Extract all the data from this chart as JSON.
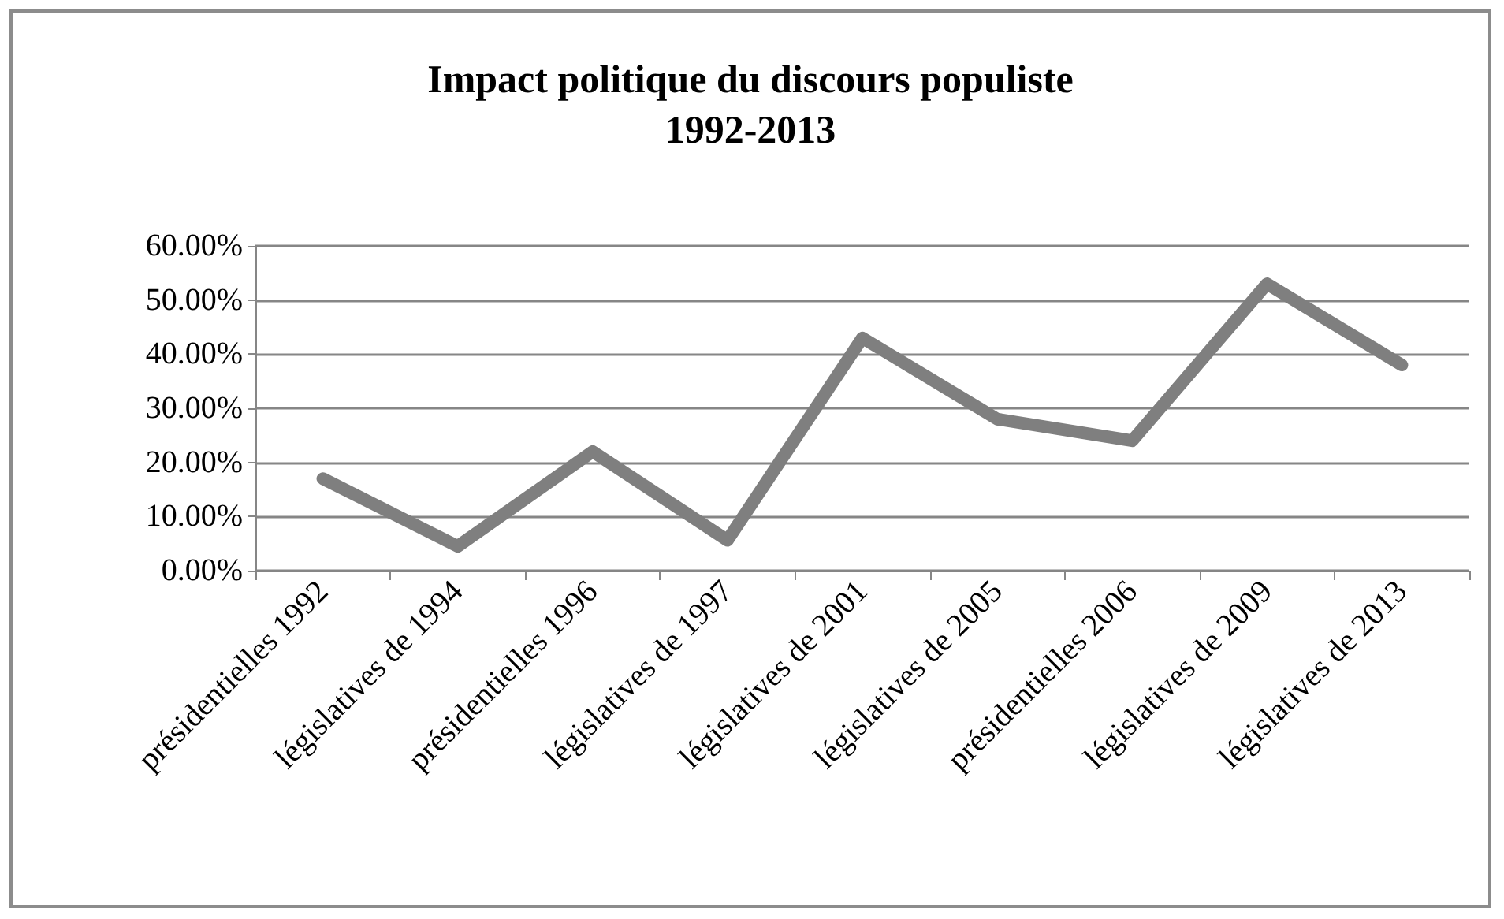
{
  "chart_data": {
    "type": "line",
    "title": "Impact politique du discours populiste\n1992-2013",
    "categories": [
      "présidentielles 1992",
      "législatives de 1994",
      "présidentielles 1996",
      "législatives de 1997",
      "législatives de 2001",
      "législatives de 2005",
      "présidentielles 2006",
      "législatives de 2009",
      "législatives de 2013"
    ],
    "series": [
      {
        "color": "#7f7f7f",
        "values": [
          17,
          4.5,
          22,
          5.6,
          43,
          28,
          24,
          53,
          38
        ]
      }
    ],
    "ylim": [
      0,
      60
    ],
    "yticks": [
      {
        "value": 0,
        "label": "0.00%"
      },
      {
        "value": 10,
        "label": "10.00%"
      },
      {
        "value": 20,
        "label": "20.00%"
      },
      {
        "value": 30,
        "label": "30.00%"
      },
      {
        "value": 40,
        "label": "40.00%"
      },
      {
        "value": 50,
        "label": "50.00%"
      },
      {
        "value": 60,
        "label": "60.00%"
      }
    ],
    "grid": "y",
    "marker": "none",
    "line_style": "solid"
  }
}
